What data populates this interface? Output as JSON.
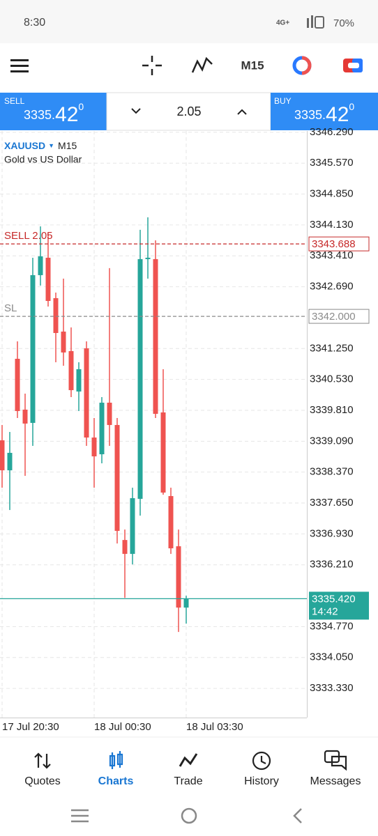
{
  "status_bar": {
    "time": "8:30",
    "network": "4G+",
    "battery": "70%"
  },
  "toolbar": {
    "timeframe": "M15"
  },
  "trade_panel": {
    "sell": {
      "label": "SELL",
      "price": "3335.",
      "big": "42",
      "sup": "0"
    },
    "volume": "2.05",
    "buy": {
      "label": "BUY",
      "price": "3335.",
      "big": "42",
      "sup": "0"
    }
  },
  "chart_data": {
    "type": "candlestick",
    "symbol": "XAUUSD",
    "timeframe": "M15",
    "description": "Gold vs US Dollar",
    "categories": [
      "17 Jul 20:30",
      null,
      null,
      null,
      null,
      null,
      null,
      null,
      null,
      null,
      null,
      null,
      "18 Jul 00:30",
      null,
      null,
      null,
      null,
      null,
      null,
      null,
      null,
      null,
      null,
      null,
      "18 Jul 03:30"
    ],
    "open": [
      3339.111,
      3338.412,
      3341.011,
      3339.826,
      3339.517,
      3342.96,
      3343.366,
      3342.424,
      3341.645,
      3341.19,
      3340.248,
      3341.255,
      3339.176,
      3338.786,
      3339.988,
      3339.468,
      3336.788,
      3336.464,
      3337.747,
      3343.334,
      3343.334,
      3339.761,
      3337.812,
      3336.642,
      3335.213
    ],
    "high": [
      3339.468,
      3339.306,
      3341.417,
      3340.199,
      3343.366,
      3344.097,
      3343.935,
      3342.554,
      3342.879,
      3341.742,
      3340.93,
      3341.417,
      3339.631,
      3340.118,
      3343.123,
      3339.631,
      3337.032,
      3338.007,
      3344.016,
      3344.308,
      3343.772,
      3340.768,
      3338.007,
      3337.032,
      3335.489
    ],
    "low": [
      3338.007,
      3337.487,
      3339.631,
      3338.283,
      3338.981,
      3342.717,
      3342.229,
      3340.93,
      3340.849,
      3340.118,
      3339.793,
      3338.981,
      3338.007,
      3338.575,
      3338.981,
      3336.707,
      3335.44,
      3336.22,
      3337.357,
      3342.879,
      3339.631,
      3337.844,
      3336.464,
      3334.644,
      3334.839
    ],
    "close": [
      3338.412,
      3338.819,
      3339.793,
      3339.501,
      3342.96,
      3343.399,
      3342.359,
      3341.612,
      3341.158,
      3340.28,
      3340.768,
      3339.176,
      3338.737,
      3339.988,
      3339.468,
      3337.0,
      3336.464,
      3337.763,
      3343.334,
      3343.366,
      3339.728,
      3337.893,
      3336.594,
      3335.213,
      3335.42
    ],
    "up_color": "#26a69a",
    "down_color": "#ef5350",
    "ylim": [
      3332.65,
      3346.32
    ],
    "yticks": [
      {
        "value": 3346.29,
        "label": "3346.290"
      },
      {
        "value": 3345.57,
        "label": "3345.570"
      },
      {
        "value": 3344.85,
        "label": "3344.850"
      },
      {
        "value": 3344.13,
        "label": "3344.130"
      },
      {
        "value": 3343.41,
        "label": "3343.410"
      },
      {
        "value": 3342.69,
        "label": "3342.690"
      },
      {
        "value": 3341.25,
        "label": "3341.250"
      },
      {
        "value": 3340.53,
        "label": "3340.530"
      },
      {
        "value": 3339.81,
        "label": "3339.810"
      },
      {
        "value": 3339.09,
        "label": "3339.090"
      },
      {
        "value": 3338.37,
        "label": "3338.370"
      },
      {
        "value": 3337.65,
        "label": "3337.650"
      },
      {
        "value": 3336.93,
        "label": "3336.930"
      },
      {
        "value": 3336.21,
        "label": "3336.210"
      },
      {
        "value": 3334.77,
        "label": "3334.770"
      },
      {
        "value": 3334.05,
        "label": "3334.050"
      },
      {
        "value": 3333.33,
        "label": "3333.330"
      }
    ],
    "grid": true,
    "lines": [
      {
        "label": "SELL 2.05",
        "value": 3343.688,
        "color": "#c62828"
      },
      {
        "label": "SL",
        "value": 3342.0,
        "value_label": "3342.000",
        "color": "#8a8a8a"
      }
    ],
    "current": {
      "value": 3335.42,
      "value_label": "3335.420",
      "time": "14:42",
      "color": "#26a69a"
    }
  },
  "nav": {
    "items": [
      "Quotes",
      "Charts",
      "Trade",
      "History",
      "Messages"
    ],
    "active": 1
  }
}
